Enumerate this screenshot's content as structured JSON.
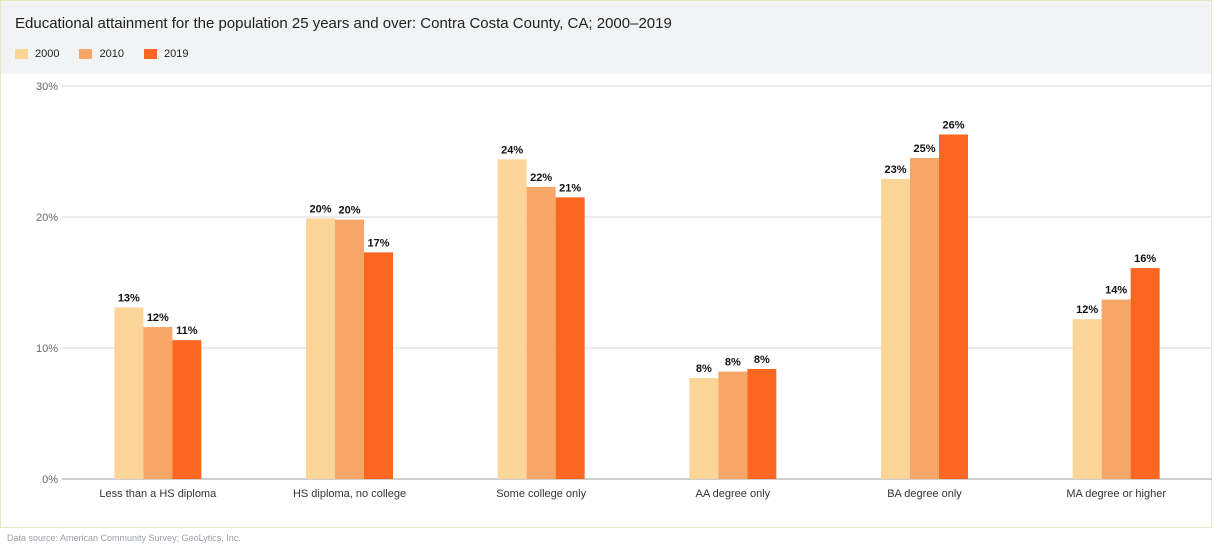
{
  "chart_data": {
    "type": "bar",
    "title": "Educational attainment for the population 25 years and over: Contra Costa County, CA; 2000–2019",
    "categories": [
      "Less than a HS diploma",
      "HS diploma, no college",
      "Some college only",
      "AA degree only",
      "BA degree only",
      "MA degree or higher"
    ],
    "series": [
      {
        "name": "2000",
        "color": "#fdd598",
        "values": [
          13.1,
          19.9,
          24.4,
          7.7,
          22.9,
          12.2
        ],
        "labels": [
          "13%",
          "20%",
          "24%",
          "8%",
          "23%",
          "12%"
        ]
      },
      {
        "name": "2010",
        "color": "#f6a767",
        "values": [
          11.6,
          19.8,
          22.3,
          8.2,
          24.5,
          13.7
        ],
        "labels": [
          "12%",
          "20%",
          "22%",
          "8%",
          "25%",
          "14%"
        ]
      },
      {
        "name": "2019",
        "color": "#fb6621",
        "values": [
          10.6,
          17.3,
          21.5,
          8.4,
          26.3,
          16.1
        ],
        "labels": [
          "11%",
          "17%",
          "21%",
          "8%",
          "26%",
          "16%"
        ]
      }
    ],
    "ylim": [
      0,
      30
    ],
    "yticks": [
      0,
      10,
      20,
      30
    ],
    "ytick_labels": [
      "0%",
      "10%",
      "20%",
      "30%"
    ],
    "grid": true,
    "legend": "top-left",
    "xlabel": "",
    "ylabel": ""
  },
  "source": "Data source: American Community Survey; GeoLytics, Inc."
}
